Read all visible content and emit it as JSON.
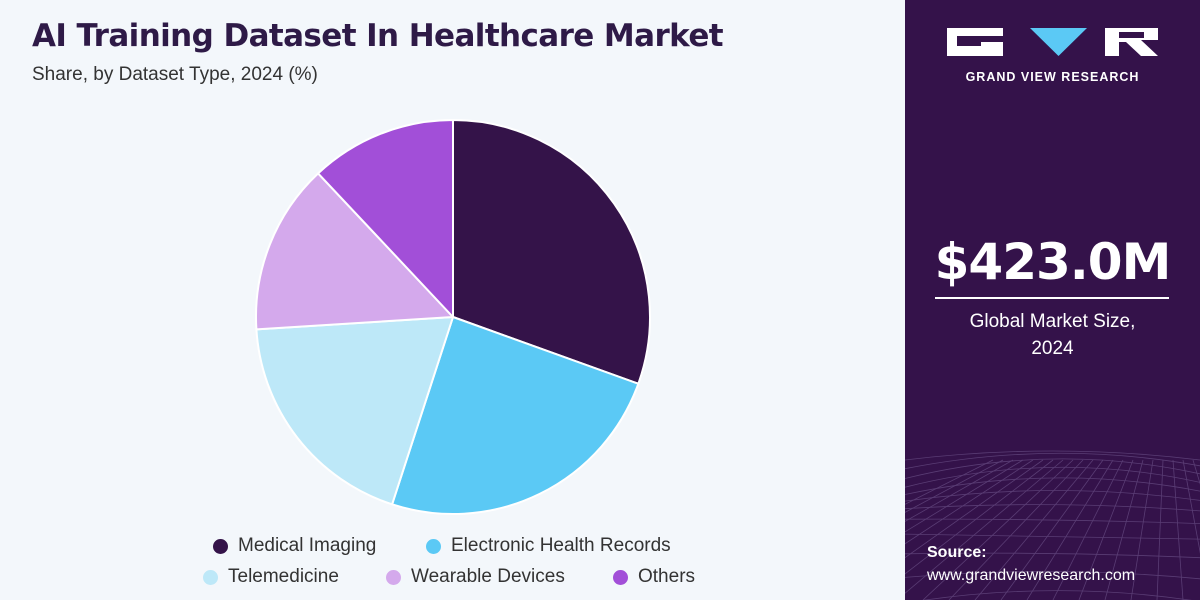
{
  "header": {
    "title": "AI Training Dataset In Healthcare Market",
    "subtitle": "Share, by Dataset Type, 2024 (%)"
  },
  "chart_data": {
    "type": "pie",
    "categories": [
      "Medical Imaging",
      "Electronic Health Records",
      "Telemedicine",
      "Wearable Devices",
      "Others"
    ],
    "values": [
      30.5,
      24.5,
      19,
      14,
      12
    ],
    "colors": [
      "#341349",
      "#5bc9f5",
      "#bde8f8",
      "#d4a9ec",
      "#a24fd8"
    ],
    "start_angle_deg": 0,
    "direction": "clockwise",
    "legend_position": "bottom",
    "title": "AI Training Dataset In Healthcare Market",
    "subtitle": "Share, by Dataset Type, 2024 (%)"
  },
  "legend": {
    "items": [
      {
        "label": "Medical Imaging",
        "color": "#341349"
      },
      {
        "label": "Electronic Health Records",
        "color": "#5bc9f5"
      },
      {
        "label": "Telemedicine",
        "color": "#bde8f8"
      },
      {
        "label": "Wearable Devices",
        "color": "#d4a9ec"
      },
      {
        "label": "Others",
        "color": "#a24fd8"
      }
    ]
  },
  "sidebar": {
    "brand": "GRAND VIEW RESEARCH",
    "market_value": "$423.0M",
    "market_caption_line1": "Global Market Size,",
    "market_caption_line2": "2024",
    "source_label": "Source:",
    "source_url": "www.grandviewresearch.com",
    "background_color": "#34124a"
  }
}
